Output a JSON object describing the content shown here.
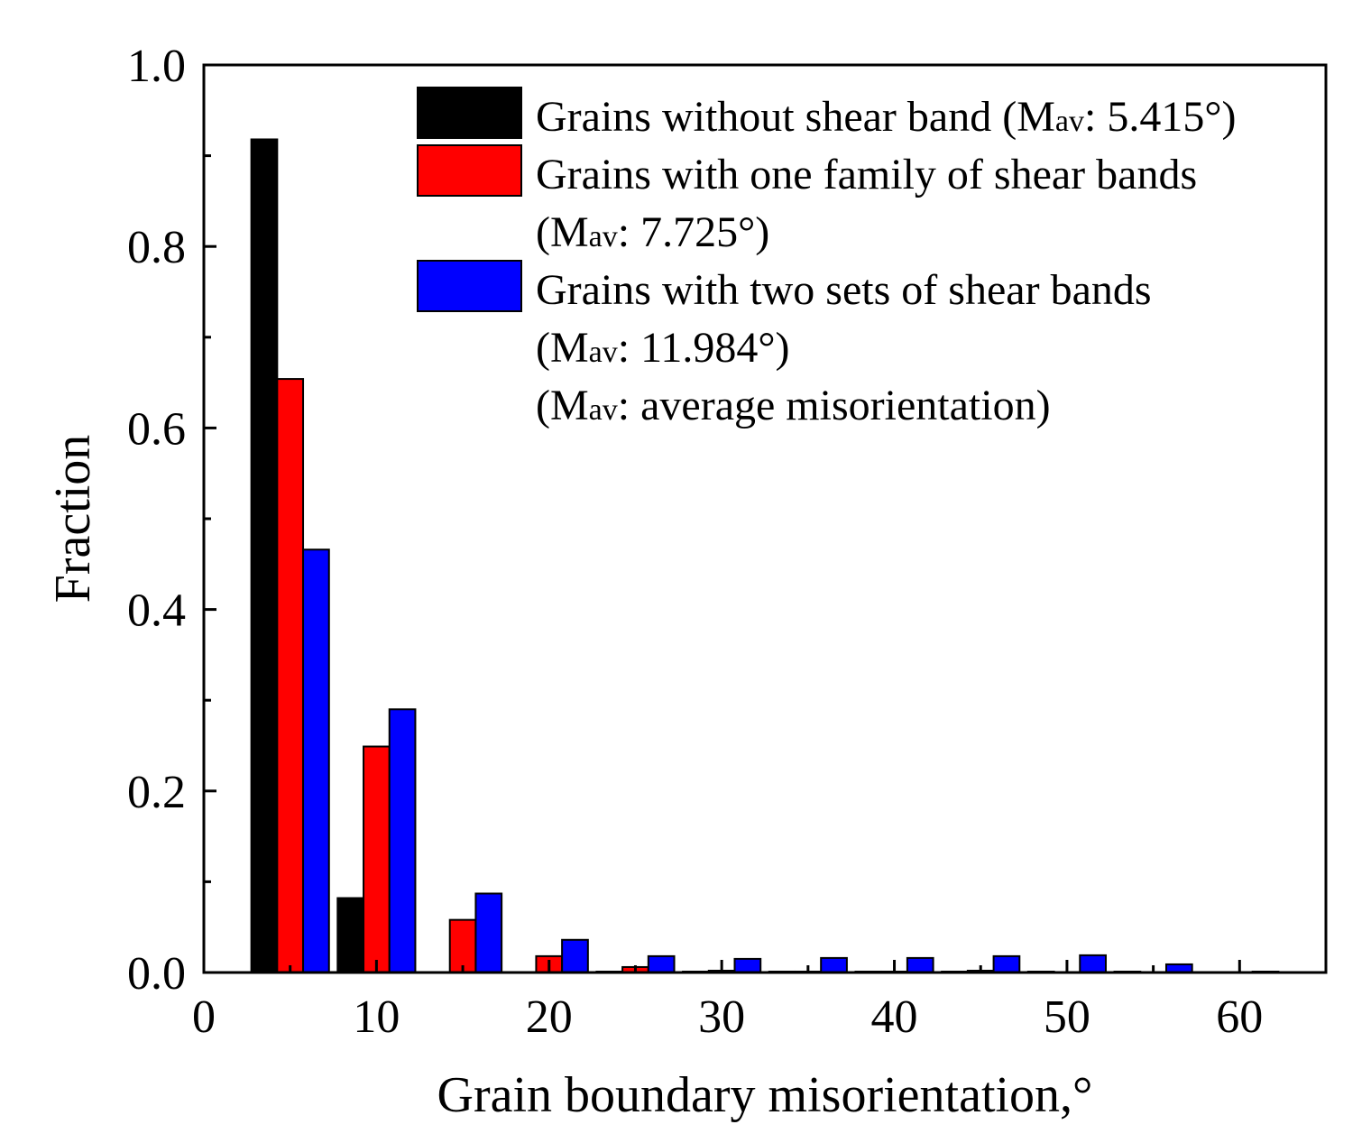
{
  "chart_data": {
    "type": "bar",
    "xlabel": "Grain boundary misorientation,°",
    "ylabel": "Fraction",
    "xlim": [
      0,
      65
    ],
    "ylim": [
      0,
      1.0
    ],
    "x_ticks": [
      0,
      10,
      20,
      30,
      40,
      50,
      60
    ],
    "x_tick_labels": [
      "0",
      "10",
      "20",
      "30",
      "40",
      "50",
      "60"
    ],
    "y_ticks": [
      0.0,
      0.2,
      0.4,
      0.6,
      0.8,
      1.0
    ],
    "y_tick_labels": [
      "0.0",
      "0.2",
      "0.4",
      "0.6",
      "0.8",
      "1.0"
    ],
    "x": [
      5,
      10,
      15,
      20,
      25,
      30,
      35,
      40,
      45,
      50,
      55,
      60
    ],
    "bar_width": 1.5,
    "legend_position": "top-right",
    "series": [
      {
        "name": "Grains without shear band",
        "color": "#000000",
        "values": [
          0.918,
          0.082,
          0,
          0,
          0.001,
          0.001,
          0.001,
          0.001,
          0.001,
          0.001,
          0.001,
          0
        ]
      },
      {
        "name": "Grains with one family of shear bands",
        "color": "#ff0000",
        "values": [
          0.654,
          0.249,
          0.058,
          0.018,
          0.006,
          0.002,
          0.001,
          0.001,
          0.002,
          0,
          0,
          0
        ]
      },
      {
        "name": "Grains with two sets of shear bands",
        "color": "#0000ff",
        "values": [
          0.466,
          0.29,
          0.087,
          0.036,
          0.018,
          0.015,
          0.016,
          0.016,
          0.018,
          0.019,
          0.009,
          0.001
        ]
      }
    ],
    "legend": [
      {
        "color": "#000000",
        "lines": [
          [
            {
              "t": "Grains without shear band (M",
              "s": false
            },
            {
              "t": "av",
              "s": true
            },
            {
              "t": ": 5.415°)",
              "s": false
            }
          ]
        ]
      },
      {
        "color": "#ff0000",
        "lines": [
          [
            {
              "t": "Grains with one family of shear bands",
              "s": false
            }
          ],
          [
            {
              "t": "(M",
              "s": false
            },
            {
              "t": "av",
              "s": true
            },
            {
              "t": ": 7.725°)",
              "s": false
            }
          ]
        ]
      },
      {
        "color": "#0000ff",
        "lines": [
          [
            {
              "t": "Grains with two sets of shear bands",
              "s": false
            }
          ],
          [
            {
              "t": "(M",
              "s": false
            },
            {
              "t": "av",
              "s": true
            },
            {
              "t": ": 11.984°)",
              "s": false
            }
          ]
        ]
      },
      {
        "color": null,
        "lines": [
          [
            {
              "t": "(M",
              "s": false
            },
            {
              "t": "av",
              "s": true
            },
            {
              "t": ": average misorientation)",
              "s": false
            }
          ]
        ]
      }
    ]
  }
}
